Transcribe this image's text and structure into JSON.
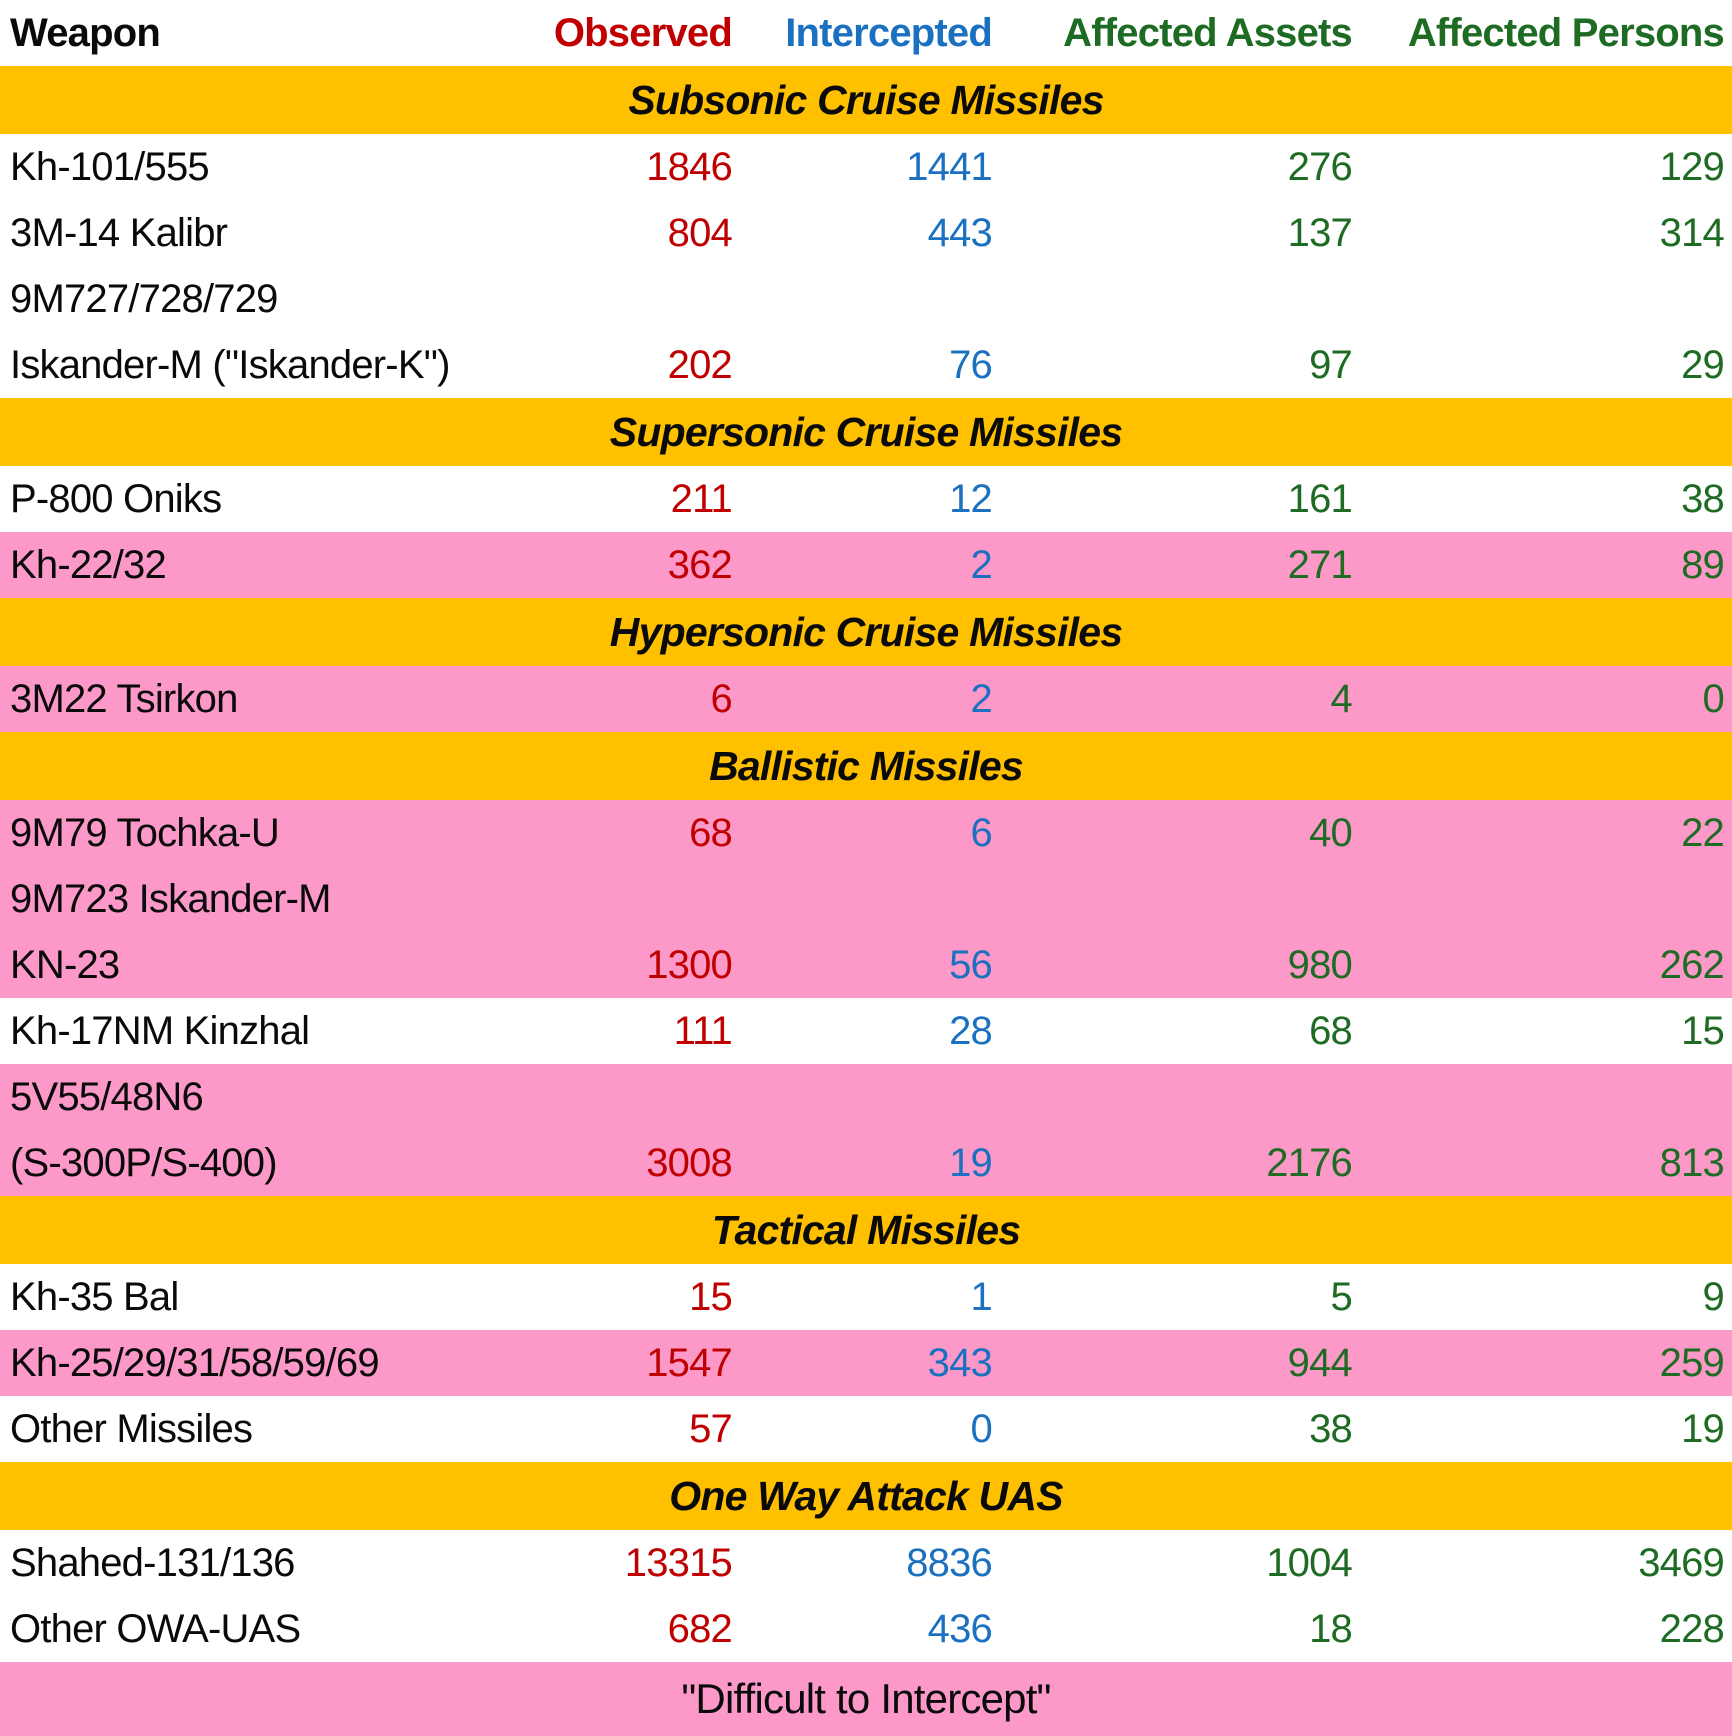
{
  "chart_data": {
    "type": "table",
    "title": "",
    "legend_note": "\"Difficult to Intercept\"",
    "colors": {
      "gold": "#FFC000",
      "pink": "#FC99C8",
      "red": "#C00000",
      "blue": "#1B70C0",
      "green": "#1E6B24",
      "black": "#0a0a0a"
    },
    "columns": [
      {
        "key": "weapon",
        "label": "Weapon",
        "color": "#0a0a0a"
      },
      {
        "key": "observed",
        "label": "Observed",
        "color": "#C00000"
      },
      {
        "key": "intercepted",
        "label": "Intercepted",
        "color": "#1B70C0"
      },
      {
        "key": "assets",
        "label": "Affected Assets",
        "color": "#1E6B24"
      },
      {
        "key": "persons",
        "label": "Affected Persons",
        "color": "#1E6B24"
      }
    ],
    "rows": [
      {
        "type": "section",
        "label": "Subsonic Cruise Missiles"
      },
      {
        "type": "data",
        "bg": "white",
        "weapon": "Kh-101/555",
        "observed": "1846",
        "intercepted": "1441",
        "assets": "276",
        "persons": "129"
      },
      {
        "type": "data",
        "bg": "white",
        "weapon": "3M-14 Kalibr",
        "observed": "804",
        "intercepted": "443",
        "assets": "137",
        "persons": "314"
      },
      {
        "type": "data",
        "bg": "white",
        "weapon": "9M727/728/729",
        "observed": "",
        "intercepted": "",
        "assets": "",
        "persons": ""
      },
      {
        "type": "data",
        "bg": "white",
        "weapon": "Iskander-M (\"Iskander-K\")",
        "observed": "202",
        "intercepted": "76",
        "assets": "97",
        "persons": "29"
      },
      {
        "type": "section",
        "label": "Supersonic Cruise Missiles"
      },
      {
        "type": "data",
        "bg": "white",
        "weapon": "P-800 Oniks",
        "observed": "211",
        "intercepted": "12",
        "assets": "161",
        "persons": "38"
      },
      {
        "type": "data",
        "bg": "pink",
        "weapon": "Kh-22/32",
        "observed": "362",
        "intercepted": "2",
        "assets": "271",
        "persons": "89"
      },
      {
        "type": "section",
        "label": "Hypersonic Cruise Missiles"
      },
      {
        "type": "data",
        "bg": "pink",
        "weapon": "3M22 Tsirkon",
        "observed": "6",
        "intercepted": "2",
        "assets": "4",
        "persons": "0"
      },
      {
        "type": "section",
        "label": "Ballistic Missiles"
      },
      {
        "type": "data",
        "bg": "pink",
        "weapon": "9M79 Tochka-U",
        "observed": "68",
        "intercepted": "6",
        "assets": "40",
        "persons": "22"
      },
      {
        "type": "data",
        "bg": "pink",
        "weapon": "9M723 Iskander-M",
        "observed": "",
        "intercepted": "",
        "assets": "",
        "persons": ""
      },
      {
        "type": "data",
        "bg": "pink",
        "weapon": "KN-23",
        "observed": "1300",
        "intercepted": "56",
        "assets": "980",
        "persons": "262"
      },
      {
        "type": "data",
        "bg": "white",
        "weapon": "Kh-17NM Kinzhal",
        "observed": "111",
        "intercepted": "28",
        "assets": "68",
        "persons": "15"
      },
      {
        "type": "data",
        "bg": "pink",
        "weapon": "5V55/48N6",
        "observed": "",
        "intercepted": "",
        "assets": "",
        "persons": ""
      },
      {
        "type": "data",
        "bg": "pink",
        "weapon": "(S-300P/S-400)",
        "observed": "3008",
        "intercepted": "19",
        "assets": "2176",
        "persons": "813"
      },
      {
        "type": "section",
        "label": "Tactical Missiles"
      },
      {
        "type": "data",
        "bg": "white",
        "weapon": "Kh-35 Bal",
        "observed": "15",
        "intercepted": "1",
        "assets": "5",
        "persons": "9"
      },
      {
        "type": "data",
        "bg": "pink",
        "weapon": "Kh-25/29/31/58/59/69",
        "observed": "1547",
        "intercepted": "343",
        "assets": "944",
        "persons": "259"
      },
      {
        "type": "data",
        "bg": "white",
        "weapon": "Other Missiles",
        "observed": "57",
        "intercepted": "0",
        "assets": "38",
        "persons": "19"
      },
      {
        "type": "section",
        "label": "One Way Attack UAS"
      },
      {
        "type": "data",
        "bg": "white",
        "weapon": "Shahed-131/136",
        "observed": "13315",
        "intercepted": "8836",
        "assets": "1004",
        "persons": "3469"
      },
      {
        "type": "data",
        "bg": "white",
        "weapon": "Other OWA-UAS",
        "observed": "682",
        "intercepted": "436",
        "assets": "18",
        "persons": "228"
      },
      {
        "type": "footer",
        "label": "\"Difficult to Intercept\""
      }
    ]
  }
}
